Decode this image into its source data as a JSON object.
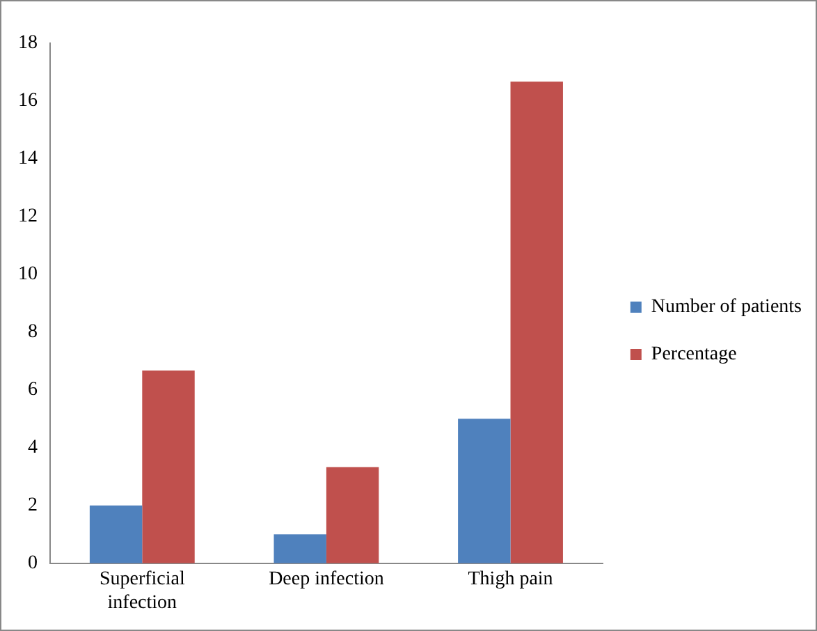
{
  "chart_data": {
    "type": "bar",
    "categories": [
      "Superficial infection",
      "Deep infection",
      "Thigh pain"
    ],
    "series": [
      {
        "name": "Number of patients",
        "color": "#4f81bd",
        "values": [
          2,
          1,
          5
        ]
      },
      {
        "name": "Percentage",
        "color": "#c0504d",
        "values": [
          6.67,
          3.33,
          16.67
        ]
      }
    ],
    "ylim": [
      0,
      18
    ],
    "yticks": [
      0,
      2,
      4,
      6,
      8,
      10,
      12,
      14,
      16,
      18
    ],
    "legend": "right"
  }
}
